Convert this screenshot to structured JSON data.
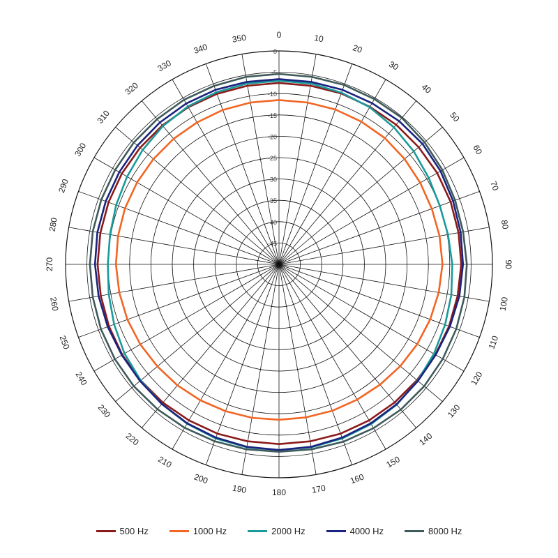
{
  "chart_data": {
    "type": "polar-line",
    "angle_ticks": [
      "0",
      "10",
      "20",
      "30",
      "40",
      "50",
      "60",
      "70",
      "80",
      "90",
      "100",
      "110",
      "120",
      "130",
      "140",
      "150",
      "160",
      "170",
      "180",
      "190",
      "200",
      "210",
      "220",
      "230",
      "240",
      "250",
      "260",
      "270",
      "280",
      "290",
      "300",
      "310",
      "320",
      "330",
      "340",
      "350"
    ],
    "radial_labels": [
      "0",
      "-5",
      "-10",
      "-15",
      "-20",
      "-25",
      "-30",
      "-35",
      "-40",
      "-45",
      "-50"
    ],
    "radial_range": [
      -50,
      0
    ],
    "grid": true,
    "legend_position": "bottom",
    "series": [
      {
        "name": "500 Hz",
        "color": "#8b1a1a",
        "values": [
          -7.5,
          -7.5,
          -7.4,
          -7.4,
          -7.3,
          -7.3,
          -7.2,
          -7.2,
          -7.3,
          -7.3,
          -7.5,
          -7.6,
          -7.7,
          -7.8,
          -7.8,
          -7.8,
          -7.8,
          -7.9,
          -7.9,
          -7.9,
          -7.8,
          -7.8,
          -7.7,
          -7.7,
          -7.6,
          -7.6,
          -7.6,
          -7.5,
          -7.5,
          -7.5,
          -7.5,
          -7.5,
          -7.5,
          -7.5,
          -7.5,
          -7.5
        ]
      },
      {
        "name": "1000 Hz",
        "color": "#f26522",
        "values": [
          -11.5,
          -11.5,
          -11.4,
          -11.4,
          -11.4,
          -11.6,
          -11.8,
          -11.9,
          -11.8,
          -11.7,
          -12.0,
          -12.3,
          -12.6,
          -12.9,
          -13.2,
          -13.4,
          -13.5,
          -13.6,
          -13.6,
          -13.5,
          -13.4,
          -13.2,
          -13.0,
          -12.8,
          -12.5,
          -12.2,
          -12.0,
          -11.8,
          -11.7,
          -11.6,
          -11.6,
          -11.6,
          -11.6,
          -11.6,
          -11.5,
          -11.5
        ]
      },
      {
        "name": "2000 Hz",
        "color": "#1a9a9a",
        "values": [
          -7.0,
          -7.0,
          -7.2,
          -7.5,
          -8.1,
          -8.8,
          -9.5,
          -9.9,
          -9.8,
          -9.4,
          -9.0,
          -8.6,
          -8.1,
          -7.6,
          -7.1,
          -6.8,
          -6.6,
          -6.5,
          -6.5,
          -6.5,
          -6.6,
          -6.9,
          -7.3,
          -7.7,
          -8.2,
          -8.9,
          -9.5,
          -9.9,
          -9.8,
          -9.4,
          -8.9,
          -8.3,
          -7.7,
          -7.3,
          -7.1,
          -7.0
        ]
      },
      {
        "name": "4000 Hz",
        "color": "#1a237e",
        "values": [
          -6.6,
          -6.6,
          -6.5,
          -6.4,
          -6.2,
          -6.1,
          -6.3,
          -6.6,
          -6.8,
          -6.9,
          -7.1,
          -7.4,
          -7.6,
          -7.5,
          -7.2,
          -7.0,
          -6.8,
          -6.6,
          -6.5,
          -6.6,
          -6.8,
          -7.0,
          -7.3,
          -7.5,
          -7.5,
          -7.3,
          -7.1,
          -6.9,
          -6.8,
          -6.8,
          -6.8,
          -6.7,
          -6.6,
          -6.5,
          -6.5,
          -6.6
        ]
      },
      {
        "name": "8000 Hz",
        "color": "#3f5a5a",
        "values": [
          -5.4,
          -5.4,
          -5.3,
          -5.3,
          -5.2,
          -5.5,
          -5.8,
          -6.1,
          -6.2,
          -6.0,
          -5.9,
          -5.8,
          -5.7,
          -5.6,
          -5.6,
          -5.7,
          -5.8,
          -6.0,
          -6.1,
          -6.0,
          -5.9,
          -5.8,
          -5.7,
          -5.6,
          -5.6,
          -5.6,
          -5.7,
          -5.7,
          -5.7,
          -5.7,
          -5.7,
          -5.6,
          -5.6,
          -5.5,
          -5.5,
          -5.4
        ]
      }
    ]
  }
}
